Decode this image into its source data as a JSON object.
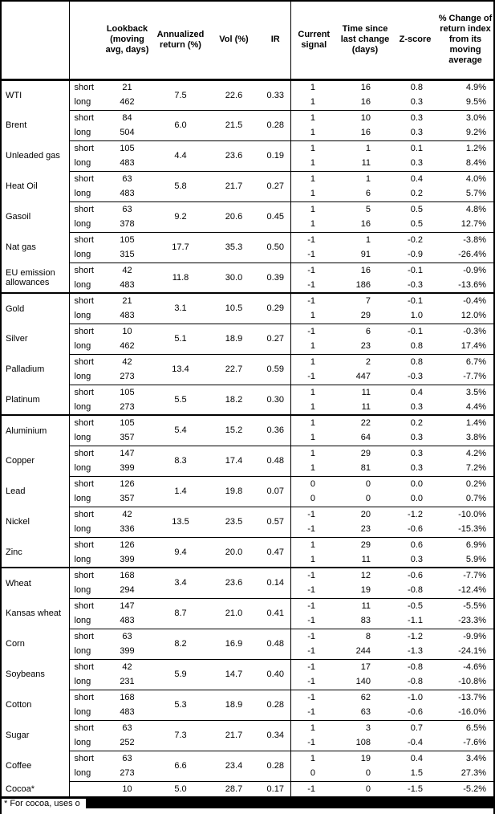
{
  "colors": {
    "text": "#000000",
    "background": "#ffffff",
    "rule": "#000000",
    "redaction": "#000000"
  },
  "table": {
    "labels": {
      "short": "short",
      "long": "long"
    },
    "header": {
      "commodity": "",
      "leg": "",
      "lookback": "Lookback (moving avg, days)",
      "annualized_return": "Annualized return (%)",
      "vol": "Vol (%)",
      "ir": "IR",
      "current_signal": "Current signal",
      "time_since": "Time since last change (days)",
      "z_score": "Z-score",
      "pct_change": "% Change of return index from its moving average"
    },
    "rows": [
      {
        "name": "WTI",
        "section_start": false,
        "annualized_return": "7.5",
        "vol": "22.6",
        "ir": "0.33",
        "short": {
          "lookback": "21",
          "signal": "1",
          "time_since": "16",
          "z_score": "0.8",
          "pct_change": "4.9%"
        },
        "long": {
          "lookback": "462",
          "signal": "1",
          "time_since": "16",
          "z_score": "0.3",
          "pct_change": "9.5%"
        }
      },
      {
        "name": "Brent",
        "section_start": false,
        "annualized_return": "6.0",
        "vol": "21.5",
        "ir": "0.28",
        "short": {
          "lookback": "84",
          "signal": "1",
          "time_since": "10",
          "z_score": "0.3",
          "pct_change": "3.0%"
        },
        "long": {
          "lookback": "504",
          "signal": "1",
          "time_since": "16",
          "z_score": "0.3",
          "pct_change": "9.2%"
        }
      },
      {
        "name": "Unleaded gas",
        "section_start": false,
        "annualized_return": "4.4",
        "vol": "23.6",
        "ir": "0.19",
        "short": {
          "lookback": "105",
          "signal": "1",
          "time_since": "1",
          "z_score": "0.1",
          "pct_change": "1.2%"
        },
        "long": {
          "lookback": "483",
          "signal": "1",
          "time_since": "11",
          "z_score": "0.3",
          "pct_change": "8.4%"
        }
      },
      {
        "name": "Heat Oil",
        "section_start": false,
        "annualized_return": "5.8",
        "vol": "21.7",
        "ir": "0.27",
        "short": {
          "lookback": "63",
          "signal": "1",
          "time_since": "1",
          "z_score": "0.4",
          "pct_change": "4.0%"
        },
        "long": {
          "lookback": "483",
          "signal": "1",
          "time_since": "6",
          "z_score": "0.2",
          "pct_change": "5.7%"
        }
      },
      {
        "name": "Gasoil",
        "section_start": false,
        "annualized_return": "9.2",
        "vol": "20.6",
        "ir": "0.45",
        "short": {
          "lookback": "63",
          "signal": "1",
          "time_since": "5",
          "z_score": "0.5",
          "pct_change": "4.8%"
        },
        "long": {
          "lookback": "378",
          "signal": "1",
          "time_since": "16",
          "z_score": "0.5",
          "pct_change": "12.7%"
        }
      },
      {
        "name": "Nat gas",
        "section_start": false,
        "annualized_return": "17.7",
        "vol": "35.3",
        "ir": "0.50",
        "short": {
          "lookback": "105",
          "signal": "-1",
          "time_since": "1",
          "z_score": "-0.2",
          "pct_change": "-3.8%"
        },
        "long": {
          "lookback": "315",
          "signal": "-1",
          "time_since": "91",
          "z_score": "-0.9",
          "pct_change": "-26.4%"
        }
      },
      {
        "name": "EU emission allowances",
        "section_start": false,
        "annualized_return": "11.8",
        "vol": "30.0",
        "ir": "0.39",
        "short": {
          "lookback": "42",
          "signal": "-1",
          "time_since": "16",
          "z_score": "-0.1",
          "pct_change": "-0.9%"
        },
        "long": {
          "lookback": "483",
          "signal": "-1",
          "time_since": "186",
          "z_score": "-0.3",
          "pct_change": "-13.6%"
        }
      },
      {
        "name": "Gold",
        "section_start": true,
        "annualized_return": "3.1",
        "vol": "10.5",
        "ir": "0.29",
        "short": {
          "lookback": "21",
          "signal": "-1",
          "time_since": "7",
          "z_score": "-0.1",
          "pct_change": "-0.4%"
        },
        "long": {
          "lookback": "483",
          "signal": "1",
          "time_since": "29",
          "z_score": "1.0",
          "pct_change": "12.0%"
        }
      },
      {
        "name": "Silver",
        "section_start": false,
        "annualized_return": "5.1",
        "vol": "18.9",
        "ir": "0.27",
        "short": {
          "lookback": "10",
          "signal": "-1",
          "time_since": "6",
          "z_score": "-0.1",
          "pct_change": "-0.3%"
        },
        "long": {
          "lookback": "462",
          "signal": "1",
          "time_since": "23",
          "z_score": "0.8",
          "pct_change": "17.4%"
        }
      },
      {
        "name": "Palladium",
        "section_start": false,
        "annualized_return": "13.4",
        "vol": "22.7",
        "ir": "0.59",
        "short": {
          "lookback": "42",
          "signal": "1",
          "time_since": "2",
          "z_score": "0.8",
          "pct_change": "6.7%"
        },
        "long": {
          "lookback": "273",
          "signal": "-1",
          "time_since": "447",
          "z_score": "-0.3",
          "pct_change": "-7.7%"
        }
      },
      {
        "name": "Platinum",
        "section_start": false,
        "annualized_return": "5.5",
        "vol": "18.2",
        "ir": "0.30",
        "short": {
          "lookback": "105",
          "signal": "1",
          "time_since": "11",
          "z_score": "0.4",
          "pct_change": "3.5%"
        },
        "long": {
          "lookback": "273",
          "signal": "1",
          "time_since": "11",
          "z_score": "0.3",
          "pct_change": "4.4%"
        }
      },
      {
        "name": "Aluminium",
        "section_start": true,
        "annualized_return": "5.4",
        "vol": "15.2",
        "ir": "0.36",
        "short": {
          "lookback": "105",
          "signal": "1",
          "time_since": "22",
          "z_score": "0.2",
          "pct_change": "1.4%"
        },
        "long": {
          "lookback": "357",
          "signal": "1",
          "time_since": "64",
          "z_score": "0.3",
          "pct_change": "3.8%"
        }
      },
      {
        "name": "Copper",
        "section_start": false,
        "annualized_return": "8.3",
        "vol": "17.4",
        "ir": "0.48",
        "short": {
          "lookback": "147",
          "signal": "1",
          "time_since": "29",
          "z_score": "0.3",
          "pct_change": "4.2%"
        },
        "long": {
          "lookback": "399",
          "signal": "1",
          "time_since": "81",
          "z_score": "0.3",
          "pct_change": "7.2%"
        }
      },
      {
        "name": "Lead",
        "section_start": false,
        "annualized_return": "1.4",
        "vol": "19.8",
        "ir": "0.07",
        "short": {
          "lookback": "126",
          "signal": "0",
          "time_since": "0",
          "z_score": "0.0",
          "pct_change": "0.2%"
        },
        "long": {
          "lookback": "357",
          "signal": "0",
          "time_since": "0",
          "z_score": "0.0",
          "pct_change": "0.7%"
        }
      },
      {
        "name": "Nickel",
        "section_start": false,
        "annualized_return": "13.5",
        "vol": "23.5",
        "ir": "0.57",
        "short": {
          "lookback": "42",
          "signal": "-1",
          "time_since": "20",
          "z_score": "-1.2",
          "pct_change": "-10.0%"
        },
        "long": {
          "lookback": "336",
          "signal": "-1",
          "time_since": "23",
          "z_score": "-0.6",
          "pct_change": "-15.3%"
        }
      },
      {
        "name": "Zinc",
        "section_start": false,
        "annualized_return": "9.4",
        "vol": "20.0",
        "ir": "0.47",
        "short": {
          "lookback": "126",
          "signal": "1",
          "time_since": "29",
          "z_score": "0.6",
          "pct_change": "6.9%"
        },
        "long": {
          "lookback": "399",
          "signal": "1",
          "time_since": "11",
          "z_score": "0.3",
          "pct_change": "5.9%"
        }
      },
      {
        "name": "Wheat",
        "section_start": true,
        "annualized_return": "3.4",
        "vol": "23.6",
        "ir": "0.14",
        "short": {
          "lookback": "168",
          "signal": "-1",
          "time_since": "12",
          "z_score": "-0.6",
          "pct_change": "-7.7%"
        },
        "long": {
          "lookback": "294",
          "signal": "-1",
          "time_since": "19",
          "z_score": "-0.8",
          "pct_change": "-12.4%"
        }
      },
      {
        "name": "Kansas wheat",
        "section_start": false,
        "annualized_return": "8.7",
        "vol": "21.0",
        "ir": "0.41",
        "short": {
          "lookback": "147",
          "signal": "-1",
          "time_since": "11",
          "z_score": "-0.5",
          "pct_change": "-5.5%"
        },
        "long": {
          "lookback": "483",
          "signal": "-1",
          "time_since": "83",
          "z_score": "-1.1",
          "pct_change": "-23.3%"
        }
      },
      {
        "name": "Corn",
        "section_start": false,
        "annualized_return": "8.2",
        "vol": "16.9",
        "ir": "0.48",
        "short": {
          "lookback": "63",
          "signal": "-1",
          "time_since": "8",
          "z_score": "-1.2",
          "pct_change": "-9.9%"
        },
        "long": {
          "lookback": "399",
          "signal": "-1",
          "time_since": "244",
          "z_score": "-1.3",
          "pct_change": "-24.1%"
        }
      },
      {
        "name": "Soybeans",
        "section_start": false,
        "annualized_return": "5.9",
        "vol": "14.7",
        "ir": "0.40",
        "short": {
          "lookback": "42",
          "signal": "-1",
          "time_since": "17",
          "z_score": "-0.8",
          "pct_change": "-4.6%"
        },
        "long": {
          "lookback": "231",
          "signal": "-1",
          "time_since": "140",
          "z_score": "-0.8",
          "pct_change": "-10.8%"
        }
      },
      {
        "name": "Cotton",
        "section_start": false,
        "annualized_return": "5.3",
        "vol": "18.9",
        "ir": "0.28",
        "short": {
          "lookback": "168",
          "signal": "-1",
          "time_since": "62",
          "z_score": "-1.0",
          "pct_change": "-13.7%"
        },
        "long": {
          "lookback": "483",
          "signal": "-1",
          "time_since": "63",
          "z_score": "-0.6",
          "pct_change": "-16.0%"
        }
      },
      {
        "name": "Sugar",
        "section_start": false,
        "annualized_return": "7.3",
        "vol": "21.7",
        "ir": "0.34",
        "short": {
          "lookback": "63",
          "signal": "1",
          "time_since": "3",
          "z_score": "0.7",
          "pct_change": "6.5%"
        },
        "long": {
          "lookback": "252",
          "signal": "-1",
          "time_since": "108",
          "z_score": "-0.4",
          "pct_change": "-7.6%"
        }
      },
      {
        "name": "Coffee",
        "section_start": false,
        "annualized_return": "6.6",
        "vol": "23.4",
        "ir": "0.28",
        "short": {
          "lookback": "63",
          "signal": "1",
          "time_since": "19",
          "z_score": "0.4",
          "pct_change": "3.4%"
        },
        "long": {
          "lookback": "273",
          "signal": "0",
          "time_since": "0",
          "z_score": "1.5",
          "pct_change": "27.3%"
        }
      },
      {
        "name": "Cocoa*",
        "section_start": false,
        "single": true,
        "lookback": "10",
        "annualized_return": "5.0",
        "vol": "28.7",
        "ir": "0.17",
        "signal": "-1",
        "time_since": "0",
        "z_score": "-1.5",
        "pct_change": "-5.2%"
      }
    ]
  },
  "footnote": {
    "visible_text": "* For cocoa, uses o"
  }
}
